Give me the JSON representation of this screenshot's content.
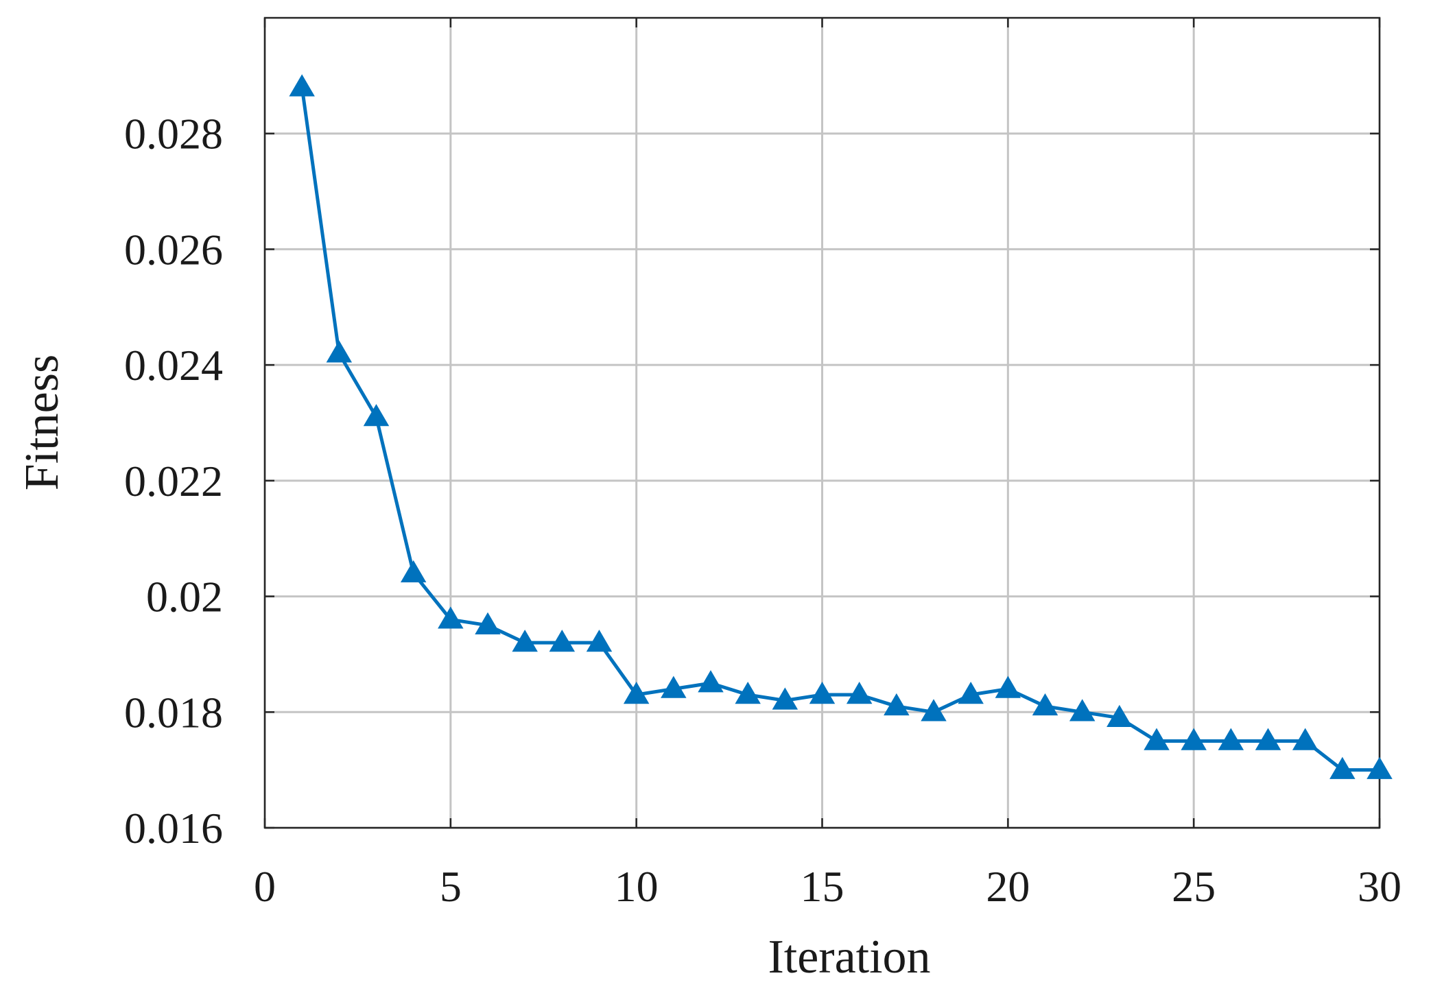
{
  "chart_data": {
    "type": "line",
    "xlabel": "Iteration",
    "ylabel": "Fitness",
    "xlim": [
      0,
      30
    ],
    "ylim": [
      0.016,
      0.03
    ],
    "xticks": [
      "0",
      "5",
      "10",
      "15",
      "20",
      "25",
      "30"
    ],
    "yticks": [
      "0.016",
      "0.018",
      "0.02",
      "0.022",
      "0.024",
      "0.026",
      "0.028"
    ],
    "grid": true,
    "marker": "triangle-up",
    "line_color": "#0072BD",
    "series": [
      {
        "x": [
          1,
          2,
          3,
          4,
          5,
          6,
          7,
          8,
          9,
          10,
          11,
          12,
          13,
          14,
          15,
          16,
          17,
          18,
          19,
          20,
          21,
          22,
          23,
          24,
          25,
          26,
          27,
          28,
          29,
          30
        ],
        "values": [
          0.0288,
          0.0242,
          0.0231,
          0.0204,
          0.0196,
          0.0195,
          0.0192,
          0.0192,
          0.0192,
          0.0183,
          0.0184,
          0.0185,
          0.0183,
          0.0182,
          0.0183,
          0.0183,
          0.0181,
          0.018,
          0.0183,
          0.0184,
          0.0181,
          0.018,
          0.0179,
          0.0175,
          0.0175,
          0.0175,
          0.0175,
          0.0175,
          0.017,
          0.017
        ]
      }
    ]
  }
}
